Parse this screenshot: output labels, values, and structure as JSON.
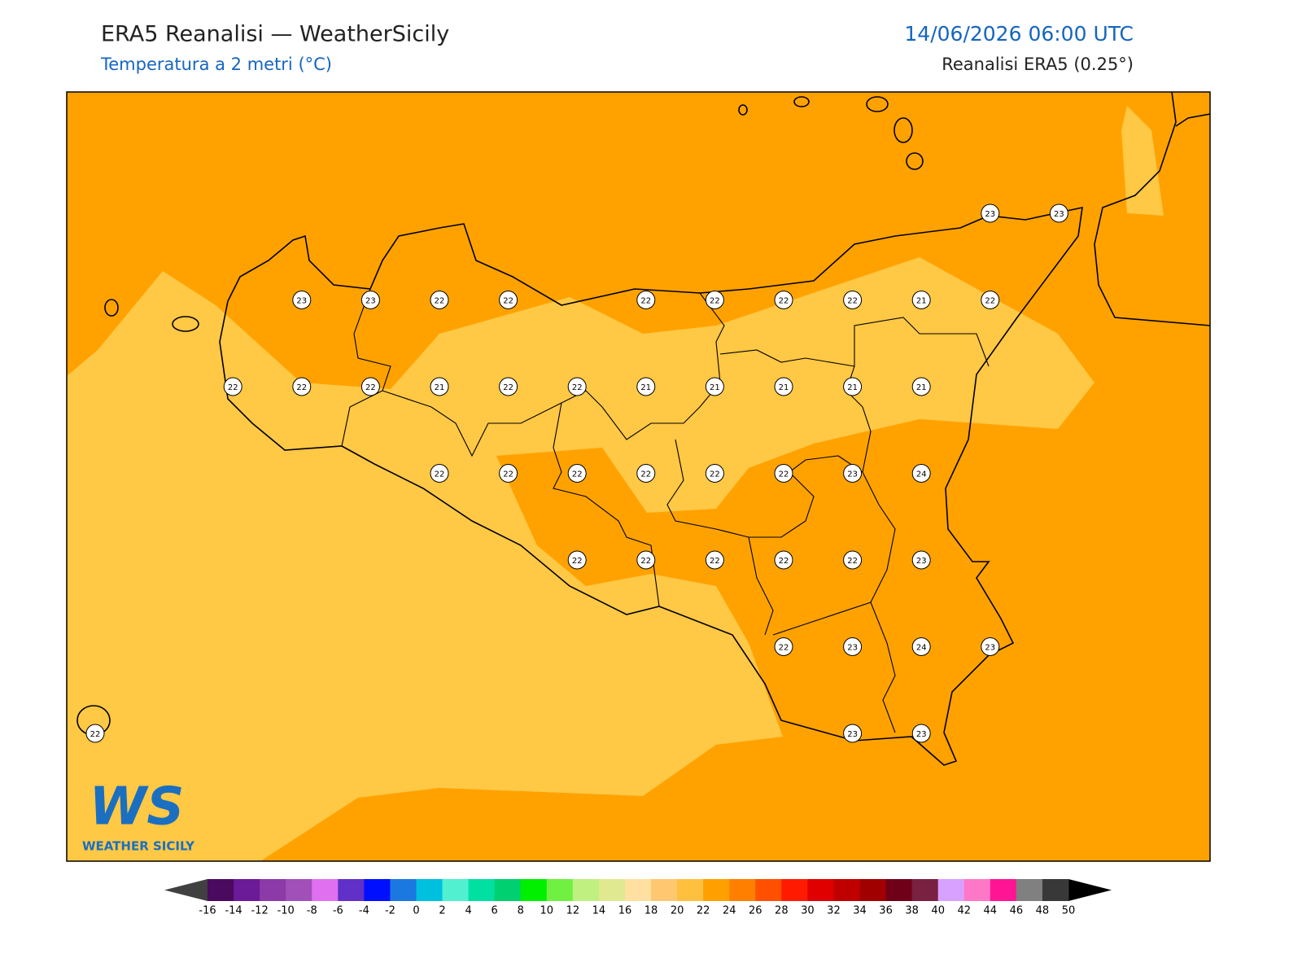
{
  "header": {
    "title": "ERA5 Reanalisi — WeatherSicily",
    "subtitle": "Temperatura a 2 metri (°C)",
    "datetime": "14/06/2026 06:00 UTC",
    "source": "Reanalisi ERA5 (0.25°)"
  },
  "map": {
    "labels": [
      [
        null,
        null,
        null,
        null,
        null,
        null,
        null,
        null,
        null,
        null,
        null,
        null,
        null,
        23,
        23
      ],
      [
        null,
        null,
        null,
        23,
        23,
        22,
        22,
        null,
        22,
        22,
        22,
        22,
        21,
        22,
        null
      ],
      [
        null,
        null,
        22,
        22,
        22,
        21,
        22,
        22,
        21,
        21,
        21,
        21,
        21,
        null,
        null
      ],
      [
        null,
        null,
        null,
        null,
        null,
        22,
        22,
        22,
        22,
        22,
        22,
        23,
        24,
        null,
        null
      ],
      [
        null,
        null,
        null,
        null,
        null,
        null,
        null,
        22,
        22,
        22,
        22,
        22,
        23,
        null,
        null
      ],
      [
        null,
        null,
        null,
        null,
        null,
        null,
        null,
        null,
        null,
        null,
        22,
        23,
        24,
        23,
        null
      ],
      [
        22,
        null,
        null,
        null,
        null,
        null,
        null,
        null,
        null,
        null,
        null,
        23,
        23,
        null,
        null
      ]
    ],
    "colorbar": {
      "ticks": [
        -16,
        -14,
        -12,
        -10,
        -8,
        -6,
        -4,
        -2,
        0,
        2,
        4,
        6,
        8,
        10,
        12,
        14,
        16,
        18,
        20,
        22,
        24,
        26,
        28,
        30,
        32,
        34,
        36,
        38,
        40,
        42,
        44,
        46,
        48,
        50
      ],
      "colors": [
        "#4a0a5e",
        "#6b1a98",
        "#8b3aa8",
        "#a050b8",
        "#e070f0",
        "#6030c8",
        "#0010ff",
        "#1a78e0",
        "#00c0e0",
        "#50f0d0",
        "#00e0a0",
        "#00d070",
        "#00f000",
        "#70f040",
        "#c0f080",
        "#e0e890",
        "#ffe0a0",
        "#ffc870",
        "#ffc040",
        "#ffa000",
        "#ff8000",
        "#ff5000",
        "#ff1a00",
        "#e00000",
        "#c00000",
        "#a00000",
        "#700018",
        "#7a2040",
        "#d8a0ff",
        "#ff78c8",
        "#ff1493",
        "#808080",
        "#383838"
      ],
      "under_color": "#404040",
      "over_color": "#000000"
    }
  },
  "logo": {
    "initials": "WS",
    "text": "WEATHER SICILY"
  }
}
